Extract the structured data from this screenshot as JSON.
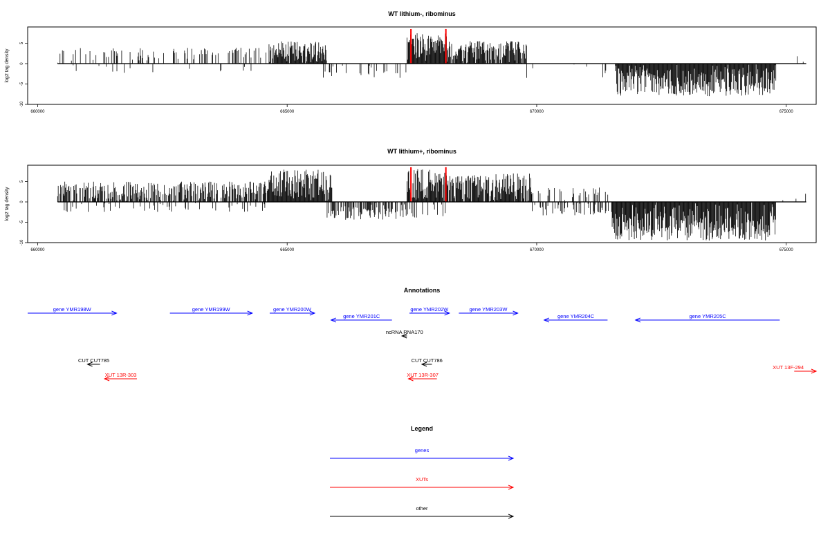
{
  "chart_data": [
    {
      "type": "bar",
      "title": "WT lithium-, ribominus",
      "ylabel": "log2 tag density",
      "xlim": [
        659800,
        675600
      ],
      "ylim": [
        -10,
        9
      ],
      "x_ticks": [
        660000,
        665000,
        670000,
        675000
      ],
      "x_tick_labels": [
        "660000",
        "665000",
        "670000",
        "675000"
      ],
      "y_ticks": [
        -10,
        -5,
        0,
        5
      ],
      "y_tick_labels": [
        "-10",
        "-5",
        "0",
        "5"
      ],
      "baseline_range": [
        660400,
        675400
      ],
      "colors": {
        "bars": "#000000",
        "highlight": "#ff0000"
      },
      "highlight_x": [
        667480,
        668180
      ],
      "regions": [
        {
          "start": 660400,
          "end": 664600,
          "sign": 1,
          "max": 4,
          "density": 0.25
        },
        {
          "start": 660400,
          "end": 664600,
          "sign": -1,
          "max": 2.5,
          "density": 0.05
        },
        {
          "start": 664600,
          "end": 665800,
          "sign": 1,
          "max": 5.5,
          "density": 0.95
        },
        {
          "start": 665700,
          "end": 667400,
          "sign": -1,
          "max": 3.5,
          "density": 0.15
        },
        {
          "start": 667400,
          "end": 668200,
          "sign": 1,
          "max": 7.5,
          "density": 1.0
        },
        {
          "start": 668200,
          "end": 669800,
          "sign": 1,
          "max": 5.5,
          "density": 0.9
        },
        {
          "start": 669800,
          "end": 671600,
          "sign": -1,
          "max": 3.5,
          "density": 0.08
        },
        {
          "start": 671600,
          "end": 674800,
          "sign": -1,
          "max": 8,
          "density": 1.0
        },
        {
          "start": 674800,
          "end": 675400,
          "sign": 1,
          "max": 2.5,
          "density": 0.04
        }
      ]
    },
    {
      "type": "bar",
      "title": "WT lithium+, ribominus",
      "ylabel": "log2 tag density",
      "xlim": [
        659800,
        675600
      ],
      "ylim": [
        -10,
        9
      ],
      "x_ticks": [
        660000,
        665000,
        670000,
        675000
      ],
      "x_tick_labels": [
        "660000",
        "665000",
        "670000",
        "675000"
      ],
      "y_ticks": [
        -10,
        -5,
        0,
        5
      ],
      "y_tick_labels": [
        "-10",
        "-5",
        "0",
        "5"
      ],
      "baseline_range": [
        660400,
        675400
      ],
      "colors": {
        "bars": "#000000",
        "highlight": "#ff0000"
      },
      "highlight_x": [
        667480,
        668180
      ],
      "regions": [
        {
          "start": 660400,
          "end": 664600,
          "sign": 1,
          "max": 5,
          "density": 0.7
        },
        {
          "start": 660400,
          "end": 664600,
          "sign": -1,
          "max": 2.5,
          "density": 0.15
        },
        {
          "start": 664600,
          "end": 665900,
          "sign": 1,
          "max": 8,
          "density": 1.0
        },
        {
          "start": 665800,
          "end": 667400,
          "sign": -1,
          "max": 4.5,
          "density": 0.6
        },
        {
          "start": 667400,
          "end": 668200,
          "sign": 1,
          "max": 8,
          "density": 1.0
        },
        {
          "start": 667400,
          "end": 668200,
          "sign": -1,
          "max": 4,
          "density": 0.3
        },
        {
          "start": 668200,
          "end": 669900,
          "sign": 1,
          "max": 7,
          "density": 0.95
        },
        {
          "start": 669900,
          "end": 671500,
          "sign": -1,
          "max": 3.5,
          "density": 0.35
        },
        {
          "start": 669900,
          "end": 671500,
          "sign": 1,
          "max": 3.5,
          "density": 0.2
        },
        {
          "start": 671500,
          "end": 674800,
          "sign": -1,
          "max": 9.5,
          "density": 1.0
        },
        {
          "start": 674800,
          "end": 675400,
          "sign": 1,
          "max": 2.5,
          "density": 0.1
        }
      ]
    }
  ],
  "annotations": {
    "title": "Annotations",
    "colors": {
      "genes": "#0000ff",
      "XUTs": "#ff0000",
      "other": "#000000"
    },
    "features": [
      {
        "label": "gene YMR198W",
        "type": "genes",
        "start": 659800,
        "end": 661580,
        "strand": "+",
        "row": 0
      },
      {
        "label": "gene YMR199W",
        "type": "genes",
        "start": 662650,
        "end": 664300,
        "strand": "+",
        "row": 0
      },
      {
        "label": "gene YMR200W",
        "type": "genes",
        "start": 664650,
        "end": 665550,
        "strand": "+",
        "row": 0
      },
      {
        "label": "gene YMR201C",
        "type": "genes",
        "start": 665880,
        "end": 667100,
        "strand": "-",
        "row": 1
      },
      {
        "label": "gene YMR202W",
        "type": "genes",
        "start": 667450,
        "end": 668250,
        "strand": "+",
        "row": 0
      },
      {
        "label": "gene YMR203W",
        "type": "genes",
        "start": 668440,
        "end": 669620,
        "strand": "+",
        "row": 0
      },
      {
        "label": "gene YMR204C",
        "type": "genes",
        "start": 670150,
        "end": 671420,
        "strand": "-",
        "row": 1
      },
      {
        "label": "gene YMR205C",
        "type": "genes",
        "start": 671980,
        "end": 674870,
        "strand": "-",
        "row": 1
      },
      {
        "label": "ncRNA RNA170",
        "type": "other",
        "start": 667300,
        "end": 667400,
        "strand": "-",
        "row": 2
      },
      {
        "label": "CUT CUT785",
        "type": "other",
        "start": 661000,
        "end": 661250,
        "strand": "-",
        "row": 3
      },
      {
        "label": "CUT CUT786",
        "type": "other",
        "start": 667700,
        "end": 667900,
        "strand": "-",
        "row": 3
      },
      {
        "label": "XUT 13R-303",
        "type": "XUTs",
        "start": 661340,
        "end": 661990,
        "strand": "-",
        "row": 4
      },
      {
        "label": "XUT 13R-307",
        "type": "XUTs",
        "start": 667430,
        "end": 668000,
        "strand": "-",
        "row": 4
      },
      {
        "label": "XUT 13F-294",
        "type": "XUTs",
        "start": 675160,
        "end": 675600,
        "strand": "+",
        "row": 5
      }
    ]
  },
  "legend": {
    "title": "Legend",
    "entries": [
      {
        "label": "genes",
        "color": "#0000ff"
      },
      {
        "label": "XUTs",
        "color": "#ff0000"
      },
      {
        "label": "other",
        "color": "#000000"
      }
    ]
  }
}
